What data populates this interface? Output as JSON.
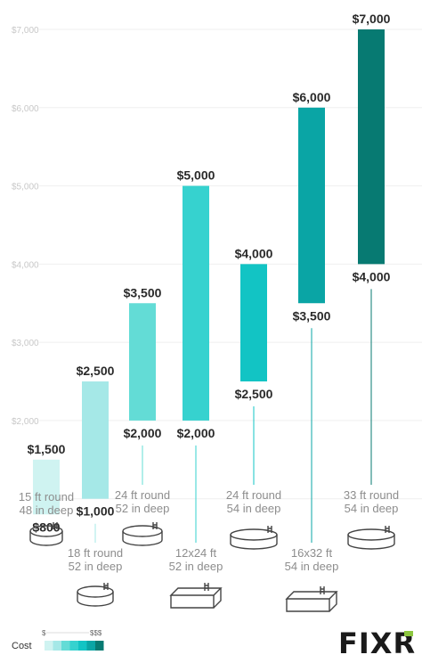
{
  "chart_data": {
    "type": "range-bar",
    "title": "",
    "xlabel": "",
    "ylabel": "",
    "ylim": [
      0,
      7000
    ],
    "y_ticks": [
      "$2,000",
      "$3,000",
      "$4,000",
      "$5,000",
      "$6,000",
      "$7,000"
    ],
    "grid": true,
    "categories": [
      {
        "line1": "15 ft round",
        "line2": "48 in deep"
      },
      {
        "line1": "18 ft round",
        "line2": "52 in deep"
      },
      {
        "line1": "24 ft round",
        "line2": "52 in deep"
      },
      {
        "line1": "12x24 ft",
        "line2": "52 in deep"
      },
      {
        "line1": "24 ft round",
        "line2": "54 in deep"
      },
      {
        "line1": "16x32 ft",
        "line2": "54 in deep"
      },
      {
        "line1": "33 ft round",
        "line2": "54 in deep"
      }
    ],
    "low": [
      800,
      1000,
      2000,
      2000,
      2500,
      3500,
      4000
    ],
    "high": [
      1500,
      2500,
      3500,
      5000,
      4000,
      6000,
      7000
    ],
    "low_labels": [
      "$800",
      "$1,000",
      "$2,000",
      "$2,000",
      "$2,500",
      "$3,500",
      "$4,000"
    ],
    "high_labels": [
      "$1,500",
      "$2,500",
      "$3,500",
      "$5,000",
      "$4,000",
      "$6,000",
      "$7,000"
    ],
    "colors": [
      "#cff3f1",
      "#a5e8e7",
      "#63dcd6",
      "#36d2cf",
      "#12c4c4",
      "#0aa5a5",
      "#077a72"
    ],
    "pool_icons": [
      "round-pool",
      "round-pool",
      "round-pool",
      "rectangular-pool",
      "round-pool",
      "rectangular-pool",
      "round-pool"
    ]
  },
  "legend": {
    "title": "Cost",
    "low": "$",
    "high": "$$$",
    "colors": [
      "#cff3f1",
      "#a5e8e7",
      "#63dcd6",
      "#36d2cf",
      "#12c4c4",
      "#0aa5a5",
      "#077a72"
    ]
  },
  "logo": {
    "text": "FIXR",
    "accent": "#8cc63f"
  }
}
